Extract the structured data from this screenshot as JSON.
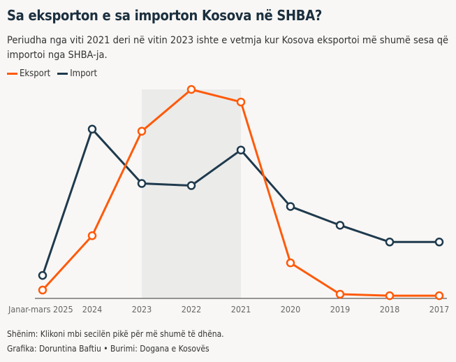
{
  "title": "Sa eksporton e sa importon Kosova në SHBA?",
  "subtitle": "Periudha nga viti 2021 deri në vitin 2023 ishte e vetmja kur Kosova eksportoi më shumë sesa që importoi nga SHBA-ja.",
  "note": "Shënim: Klikoni mbi secilën pikë për më shumë të dhëna.",
  "credit": "Grafika: Doruntina Baftiu • Burimi: Dogana e Kosovës",
  "chart_data": {
    "type": "line",
    "categories": [
      "Janar-mars 2025",
      "2024",
      "2023",
      "2022",
      "2021",
      "2020",
      "2019",
      "2018",
      "2017"
    ],
    "series": [
      {
        "name": "Eksport",
        "color": "#ff5a0a",
        "values": [
          4,
          30,
          80,
          100,
          94,
          17,
          2,
          1.3,
          1.3
        ]
      },
      {
        "name": "Import",
        "color": "#1f3a4d",
        "values": [
          11,
          81,
          55,
          54,
          71,
          44,
          35,
          27,
          27
        ]
      }
    ],
    "y_axis": "unlabeled, relative scale",
    "ylim": [
      0,
      100
    ],
    "highlight_range": [
      "2023",
      "2021"
    ],
    "grid": false,
    "legend": "top-left"
  }
}
